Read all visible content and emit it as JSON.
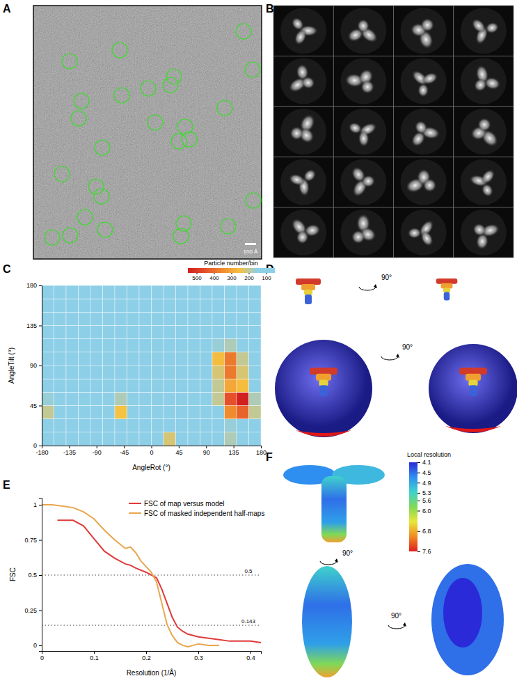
{
  "panels": [
    {
      "label": "A",
      "scale_bar": "100 Å"
    },
    {
      "label": "B"
    },
    {
      "label": "C"
    },
    {
      "label": "D",
      "rotations": [
        "90°",
        "90°"
      ]
    },
    {
      "label": "E"
    },
    {
      "label": "F",
      "rotations": [
        "90°",
        "90°"
      ],
      "colorbar": {
        "label": "Local resolution",
        "range": [
          4.1,
          7.6
        ],
        "ticks": [
          4.1,
          4.5,
          4.9,
          5.3,
          5.6,
          {
            "value": 6,
            "label": "6.0"
          },
          6.8,
          7.6
        ],
        "colors": [
          "#2a2ad8",
          "#2f8ff0",
          "#3fd2cc",
          "#80d957",
          "#e9e63a",
          "#f08a24",
          "#de1f1f"
        ]
      }
    }
  ],
  "chart_data": [
    {
      "type": "heatmap",
      "x_label": "AngleRot (°)",
      "y_label": "AngleTilt (°)",
      "xlim": [
        -180,
        180
      ],
      "ylim": [
        0,
        180
      ],
      "xticks": [
        -180,
        -135,
        -90,
        -45,
        0,
        45,
        90,
        135,
        180
      ],
      "yticks": [
        0,
        45,
        90,
        135,
        180
      ],
      "x_bins": [
        -180,
        -160,
        -140,
        -120,
        -100,
        -80,
        -60,
        -40,
        -20,
        0,
        20,
        40,
        60,
        80,
        100,
        120,
        140,
        160,
        180
      ],
      "y_bins": [
        0,
        15,
        30,
        45,
        60,
        75,
        90,
        105,
        120,
        135,
        150,
        165,
        180
      ],
      "cells": [
        [
          40,
          40,
          40,
          40,
          40,
          60,
          60,
          60,
          60,
          80,
          220,
          120,
          60,
          60,
          60,
          180,
          60,
          40
        ],
        [
          100,
          90,
          90,
          90,
          90,
          100,
          110,
          100,
          100,
          110,
          130,
          110,
          100,
          100,
          110,
          160,
          120,
          100
        ],
        [
          200,
          110,
          100,
          100,
          110,
          150,
          250,
          140,
          100,
          100,
          110,
          100,
          100,
          110,
          150,
          350,
          420,
          200
        ],
        [
          160,
          100,
          100,
          100,
          100,
          130,
          180,
          120,
          100,
          100,
          100,
          100,
          100,
          120,
          200,
          450,
          550,
          180
        ],
        [
          110,
          100,
          100,
          100,
          100,
          100,
          110,
          100,
          100,
          100,
          100,
          100,
          100,
          120,
          200,
          300,
          260,
          130
        ],
        [
          100,
          100,
          100,
          100,
          100,
          100,
          100,
          100,
          100,
          100,
          100,
          100,
          110,
          140,
          220,
          380,
          220,
          120
        ],
        [
          100,
          100,
          100,
          100,
          100,
          100,
          100,
          100,
          100,
          100,
          100,
          100,
          110,
          150,
          260,
          380,
          200,
          110
        ],
        [
          90,
          90,
          90,
          90,
          90,
          90,
          90,
          90,
          90,
          90,
          90,
          90,
          100,
          110,
          160,
          180,
          120,
          90
        ],
        [
          80,
          80,
          80,
          80,
          80,
          80,
          80,
          80,
          80,
          80,
          80,
          80,
          80,
          90,
          100,
          110,
          90,
          80
        ],
        [
          80,
          80,
          80,
          80,
          80,
          80,
          80,
          80,
          80,
          80,
          80,
          80,
          80,
          80,
          90,
          90,
          80,
          80
        ],
        [
          70,
          70,
          70,
          70,
          70,
          70,
          70,
          70,
          70,
          70,
          70,
          70,
          70,
          70,
          70,
          70,
          70,
          70
        ],
        [
          40,
          40,
          40,
          40,
          40,
          40,
          40,
          40,
          40,
          40,
          40,
          40,
          40,
          40,
          40,
          40,
          40,
          40
        ]
      ],
      "colorbar": {
        "label": "Particle number/bin",
        "range": [
          50,
          550
        ],
        "ticks": [
          500,
          400,
          300,
          200,
          100
        ],
        "colors": [
          "#8ecfe8",
          "#8ecfe8",
          "#f5c242",
          "#f08c2e",
          "#e4502a",
          "#d21f1f"
        ]
      }
    },
    {
      "type": "line",
      "x_label": "Resolution (1/Å)",
      "y_label": "FSC",
      "xlim": [
        0,
        0.42
      ],
      "ylim": [
        -0.04,
        1.05
      ],
      "xticks": [
        0,
        0.1,
        0.2,
        0.3,
        0.4
      ],
      "yticks": [
        0,
        0.25,
        0.5,
        0.75,
        1
      ],
      "thresholds": [
        0.5,
        0.143
      ],
      "legend": "upper right",
      "series": [
        {
          "name": "FSC of map versus model",
          "color": "#e03a3a",
          "x": [
            0.03,
            0.06,
            0.08,
            0.1,
            0.12,
            0.14,
            0.16,
            0.17,
            0.18,
            0.2,
            0.22,
            0.23,
            0.24,
            0.25,
            0.26,
            0.27,
            0.28,
            0.3,
            0.32,
            0.34,
            0.36,
            0.38,
            0.4,
            0.42
          ],
          "values": [
            0.89,
            0.89,
            0.85,
            0.76,
            0.67,
            0.62,
            0.58,
            0.57,
            0.55,
            0.52,
            0.48,
            0.4,
            0.3,
            0.2,
            0.13,
            0.1,
            0.08,
            0.06,
            0.05,
            0.04,
            0.03,
            0.03,
            0.03,
            0.02
          ]
        },
        {
          "name": "FSC of masked independent half-maps",
          "color": "#e8a64c",
          "x": [
            0,
            0.02,
            0.04,
            0.06,
            0.08,
            0.1,
            0.12,
            0.14,
            0.16,
            0.17,
            0.18,
            0.19,
            0.2,
            0.21,
            0.22,
            0.23,
            0.24,
            0.25,
            0.26,
            0.27,
            0.28,
            0.3,
            0.32,
            0.34
          ],
          "values": [
            1,
            1,
            0.99,
            0.98,
            0.95,
            0.9,
            0.82,
            0.75,
            0.69,
            0.7,
            0.66,
            0.6,
            0.56,
            0.52,
            0.45,
            0.3,
            0.15,
            0.07,
            0.02,
            0,
            -0.01,
            0.01,
            0,
            0
          ]
        }
      ]
    }
  ]
}
